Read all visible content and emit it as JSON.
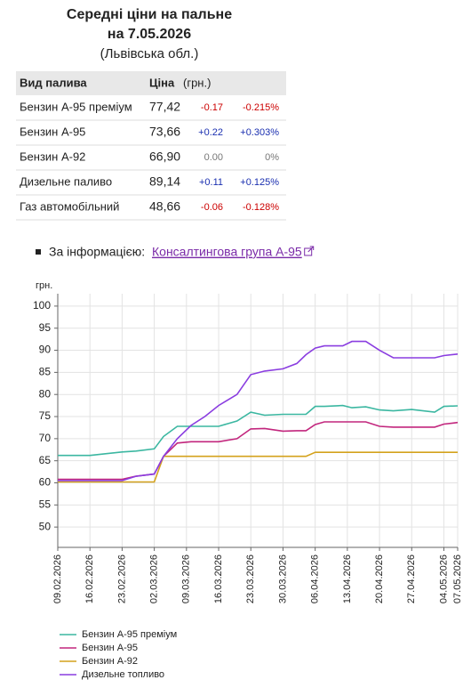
{
  "header": {
    "title": "Середні ціни на пальне",
    "date": "на 7.05.2026",
    "region": "(Львівська обл.)"
  },
  "table": {
    "columns": [
      "Вид палива",
      "Ціна",
      "(грн.)"
    ],
    "rows": [
      [
        "Бензин А-95 преміум",
        "77,42",
        "-0.17",
        "-0.215%"
      ],
      [
        "Бензин А-95",
        "73,66",
        "+0.22",
        "+0.303%"
      ],
      [
        "Бензин А-92",
        "66,90",
        "0.00",
        "0%"
      ],
      [
        "Дизельне паливо",
        "89,14",
        "+0.11",
        "+0.125%"
      ],
      [
        "Газ автомобільний",
        "48,66",
        "-0.06",
        "-0.128%"
      ]
    ]
  },
  "source": {
    "label": "За інформацією:",
    "link": "Консалтингова група А-95"
  },
  "chart_data": {
    "type": "line",
    "y_label": "грн.",
    "x": [
      "09.02.2026",
      "16.02.2026",
      "23.02.2026",
      "26.02.2026",
      "02.03.2026",
      "04.03.2026",
      "07.03.2026",
      "10.03.2026",
      "13.03.2026",
      "16.03.2026",
      "20.03.2026",
      "23.03.2026",
      "26.03.2026",
      "30.03.2026",
      "02.04.2026",
      "04.04.2026",
      "06.04.2026",
      "08.04.2026",
      "12.04.2026",
      "14.04.2026",
      "17.04.2026",
      "20.04.2026",
      "23.04.2026",
      "27.04.2026",
      "02.05.2026",
      "04.05.2026",
      "07.05.2026"
    ],
    "xticks": [
      "09.02.2026",
      "16.02.2026",
      "23.02.2026",
      "02.03.2026",
      "09.03.2026",
      "16.03.2026",
      "23.03.2026",
      "30.03.2026",
      "06.04.2026",
      "13.04.2026",
      "20.04.2026",
      "27.04.2026",
      "04.05.2026",
      "07.05.2026"
    ],
    "ylim": [
      45.4,
      102.8
    ],
    "yticks": [
      50,
      55,
      60,
      65,
      70,
      75,
      80,
      85,
      90,
      95,
      100
    ],
    "grid": true,
    "series": [
      {
        "name": "Бензин А-95 преміум",
        "color": "#3bb7a1",
        "values": [
          66.2,
          66.2,
          67.0,
          67.2,
          67.7,
          70.5,
          72.8,
          72.8,
          72.8,
          72.8,
          74.0,
          76.0,
          75.3,
          75.5,
          75.5,
          75.5,
          77.3,
          77.3,
          77.5,
          77.0,
          77.2,
          76.5,
          76.3,
          76.6,
          76.0,
          77.3,
          77.42
        ]
      },
      {
        "name": "Бензин А-95",
        "color": "#c2267d",
        "values": [
          60.8,
          60.8,
          60.8,
          61.5,
          62.0,
          66.0,
          69.0,
          69.3,
          69.3,
          69.3,
          70.0,
          72.2,
          72.3,
          71.7,
          71.8,
          71.8,
          73.2,
          73.8,
          73.8,
          73.8,
          73.8,
          72.8,
          72.6,
          72.6,
          72.6,
          73.3,
          73.66
        ]
      },
      {
        "name": "Бензин А-92",
        "color": "#d4a21c",
        "values": [
          60.2,
          60.2,
          60.2,
          60.2,
          60.2,
          66.0,
          66.0,
          66.0,
          66.0,
          66.0,
          66.0,
          66.0,
          66.0,
          66.0,
          66.0,
          66.0,
          66.9,
          66.9,
          66.9,
          66.9,
          66.9,
          66.9,
          66.9,
          66.9,
          66.9,
          66.9,
          66.9
        ]
      },
      {
        "name": "Дизельне топливо",
        "color": "#8a3de0",
        "values": [
          60.5,
          60.5,
          60.5,
          61.5,
          62.0,
          66.0,
          70.0,
          73.0,
          75.0,
          77.5,
          80.0,
          84.5,
          85.3,
          85.8,
          87.0,
          89.0,
          90.5,
          91.0,
          91.0,
          92.0,
          92.0,
          90.0,
          88.3,
          88.3,
          88.3,
          88.8,
          89.14
        ]
      }
    ]
  }
}
